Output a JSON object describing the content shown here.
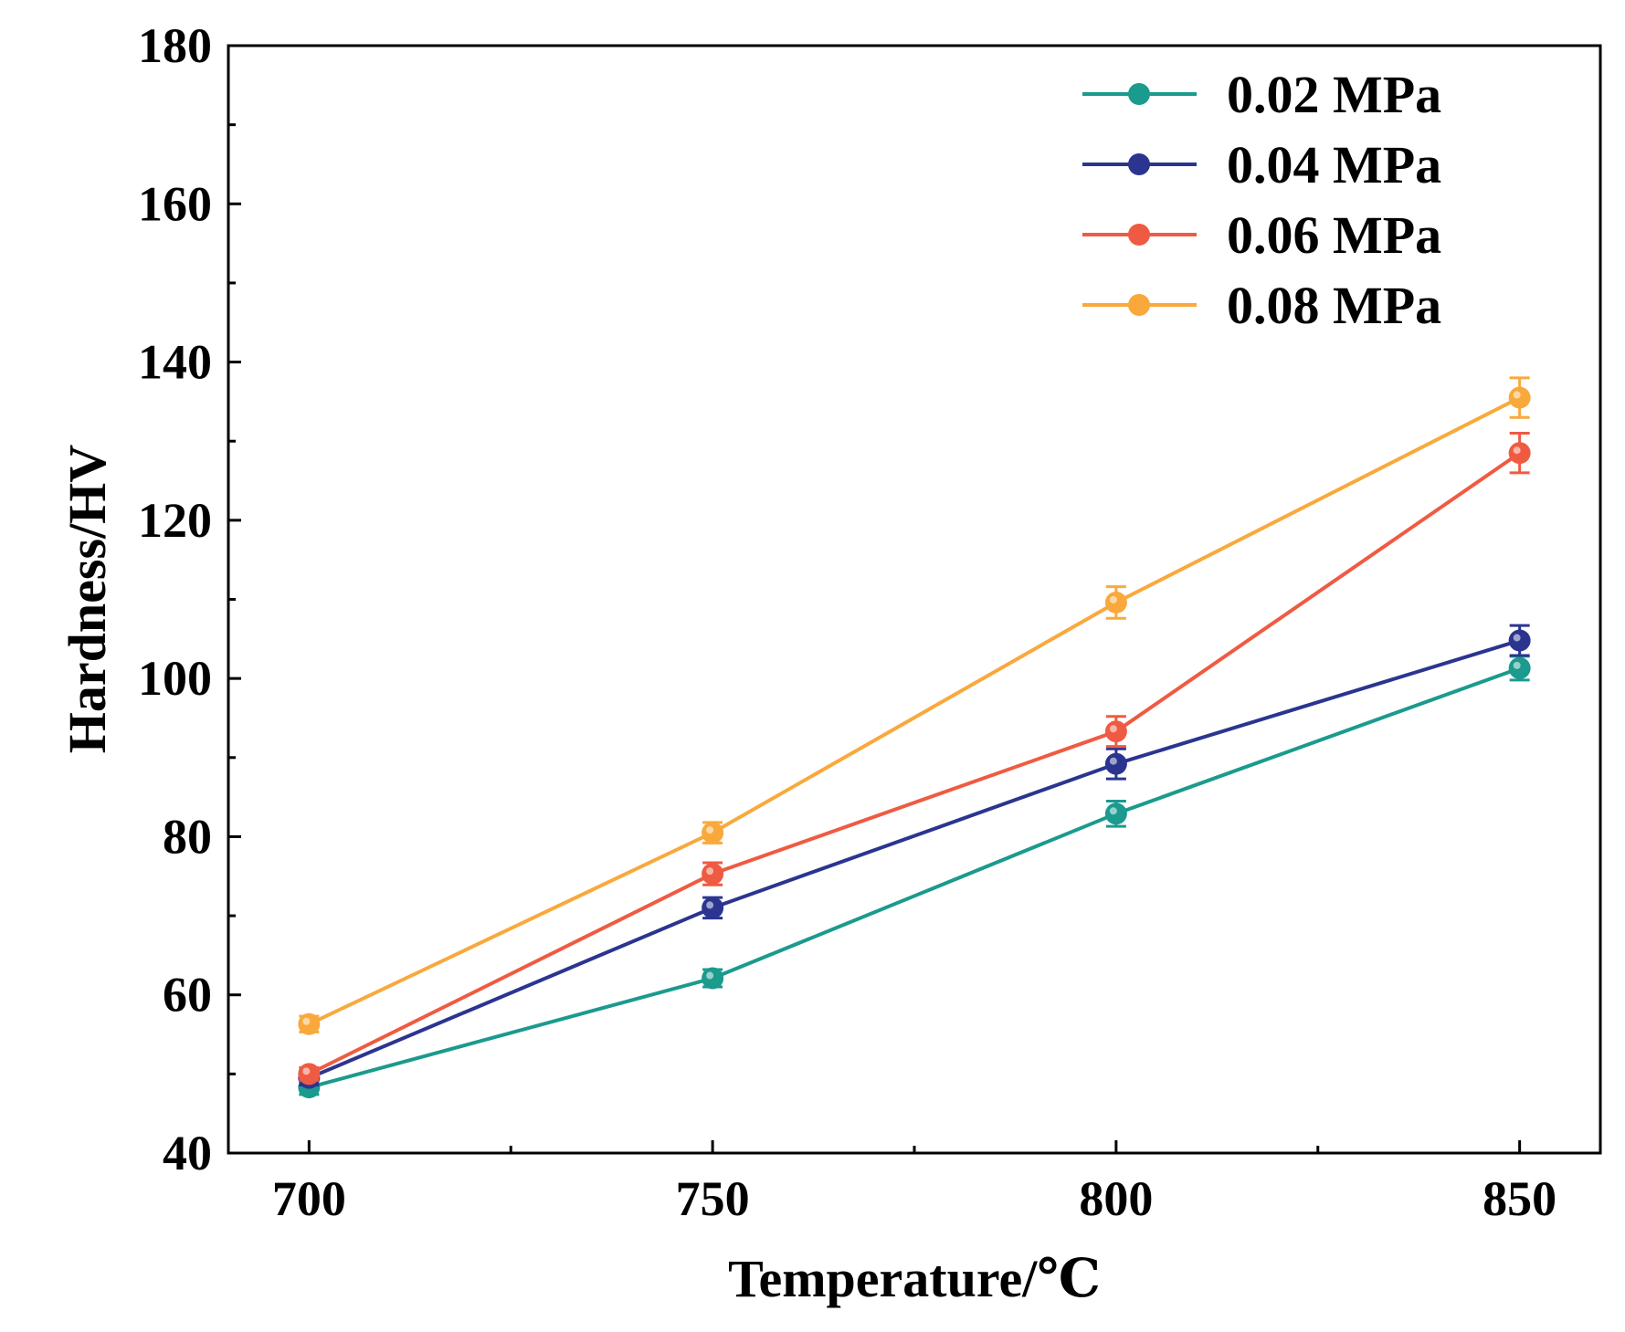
{
  "chart_data": {
    "type": "line",
    "title": "",
    "xlabel": "Temperature/℃",
    "ylabel": "Hardness/HV",
    "x": [
      700,
      750,
      800,
      850
    ],
    "xlim": [
      690,
      860
    ],
    "ylim": [
      40,
      180
    ],
    "xticks": [
      700,
      750,
      800,
      850
    ],
    "yticks": [
      40,
      60,
      80,
      100,
      120,
      140,
      160,
      180
    ],
    "x_tick_labels": [
      "700",
      "750",
      "800",
      "850"
    ],
    "y_tick_labels": [
      "40",
      "60",
      "80",
      "100",
      "120",
      "140",
      "160",
      "180"
    ],
    "legend_position": "top-right",
    "grid": false,
    "series": [
      {
        "name": "0.02 MPa",
        "color": "#1b9a8e",
        "values": [
          48.3,
          62.1,
          82.9,
          101.3
        ],
        "errors": [
          0.9,
          1.1,
          1.6,
          1.5
        ]
      },
      {
        "name": "0.04 MPa",
        "color": "#2b3590",
        "values": [
          49.5,
          71.0,
          89.2,
          104.8
        ],
        "errors": [
          0.9,
          1.3,
          1.9,
          1.9
        ]
      },
      {
        "name": "0.06 MPa",
        "color": "#ef5b42",
        "values": [
          50.0,
          75.3,
          93.3,
          128.5
        ],
        "errors": [
          0.8,
          1.4,
          1.9,
          2.5
        ]
      },
      {
        "name": "0.08 MPa",
        "color": "#f9a93c",
        "values": [
          56.3,
          80.5,
          109.6,
          135.5
        ],
        "errors": [
          1.0,
          1.3,
          2.0,
          2.5
        ]
      }
    ]
  }
}
